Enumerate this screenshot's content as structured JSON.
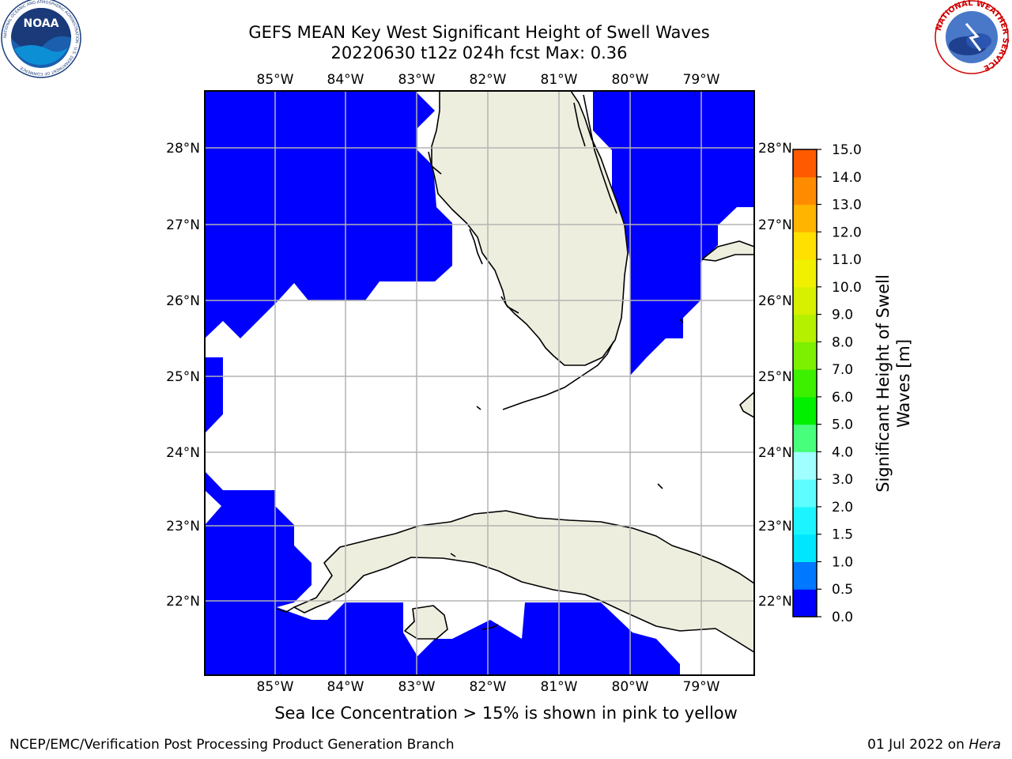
{
  "header": {
    "title_line1": "GEFS MEAN Key West Significant Height of Swell Waves",
    "title_line2": "20220630 t12z 024h fcst   Max: 0.36",
    "left_logo_text": "NOAA",
    "left_logo_ring": "NATIONAL OCEANIC AND ATMOSPHERIC ADMINISTRATION · U.S. DEPARTMENT OF COMMERCE",
    "right_logo_ring": "NATIONAL WEATHER SERVICE"
  },
  "map": {
    "lon_ticks": [
      "85°W",
      "84°W",
      "83°W",
      "82°W",
      "81°W",
      "80°W",
      "79°W"
    ],
    "lat_ticks": [
      "28°N",
      "27°N",
      "26°N",
      "25°N",
      "24°N",
      "23°N",
      "22°N"
    ],
    "lon_range": [
      -86,
      -78.3
    ],
    "lat_range": [
      21.0,
      28.8
    ],
    "colors": {
      "water": "#0000ff",
      "land": "#eeeedf",
      "grid": "#b3b3b3"
    }
  },
  "colorbar": {
    "label_line1": "Significant Height of Swell",
    "label_line2": "Waves [m]",
    "ticks": [
      "15.0",
      "14.0",
      "13.0",
      "12.0",
      "11.0",
      "10.0",
      "9.0",
      "8.0",
      "7.0",
      "6.0",
      "5.0",
      "4.0",
      "3.0",
      "2.0",
      "1.5",
      "1.0",
      "0.5",
      "0.0"
    ],
    "colors_bottom_to_top": [
      "#0000ff",
      "#0078ff",
      "#00e6ff",
      "#1cf5ff",
      "#5efdff",
      "#a0ffff",
      "#48ff7c",
      "#00f000",
      "#3cf000",
      "#7cf000",
      "#b4f000",
      "#d7f000",
      "#f0f000",
      "#ffe000",
      "#ffb400",
      "#ff8c00",
      "#ff5a00",
      "#ff2800",
      "#ff0000"
    ]
  },
  "caption": "Sea Ice Concentration > 15% is shown in pink to yellow",
  "footer": {
    "left": "NCEP/EMC/Verification Post Processing Product Generation Branch",
    "right_prefix": "01 Jul 2022 on",
    "right_host": "Hera"
  }
}
